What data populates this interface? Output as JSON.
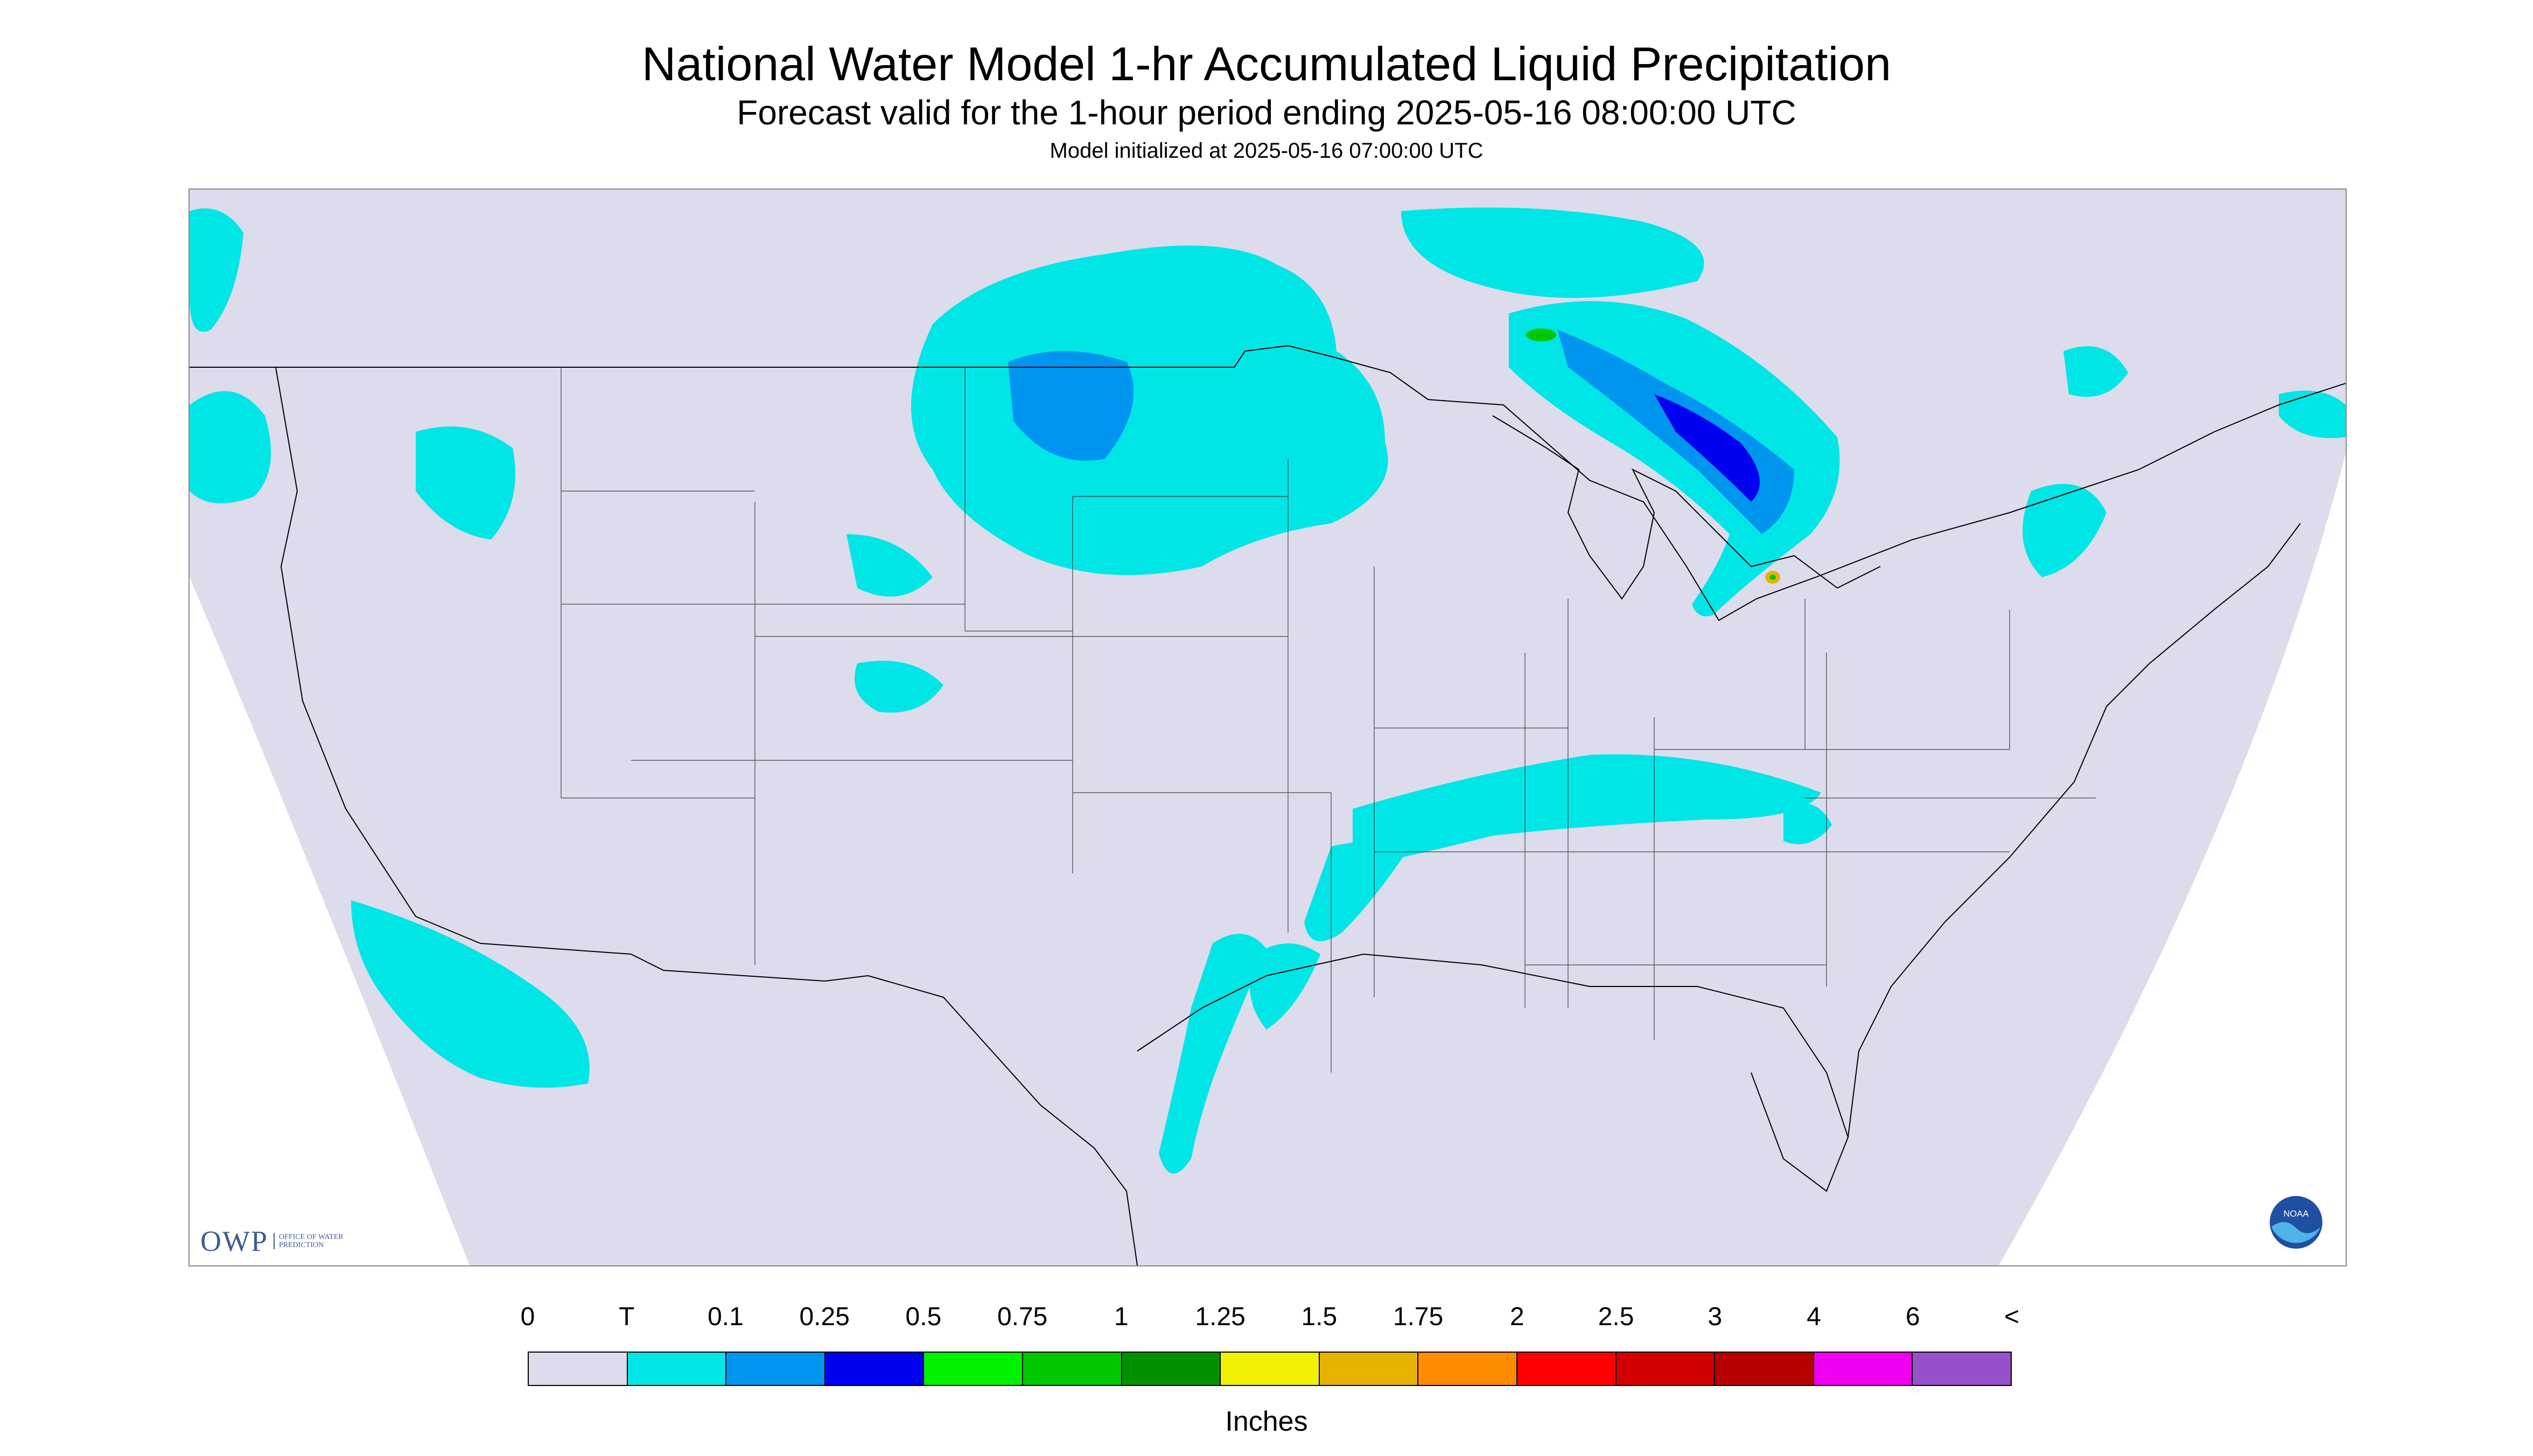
{
  "title": "National Water Model 1-hr Accumulated Liquid Precipitation",
  "subtitle": "Forecast valid for the 1-hour period ending 2025-05-16 08:00:00 UTC",
  "init_note": "Model initialized at 2025-05-16 07:00:00 UTC",
  "owp_logo": {
    "text": "OWP",
    "subtext": "OFFICE OF WATER PREDICTION"
  },
  "noaa_logo": {
    "text": "NOAA",
    "icon": "noaa-logo-icon"
  },
  "legend": {
    "units": "Inches",
    "labels": [
      "0",
      "T",
      "0.1",
      "0.25",
      "0.5",
      "0.75",
      "1",
      "1.25",
      "1.5",
      "1.75",
      "2",
      "2.5",
      "3",
      "4",
      "6",
      "<"
    ],
    "colors": [
      "#dcdcec",
      "#00e6e6",
      "#0096f0",
      "#0000f0",
      "#00f000",
      "#00c800",
      "#009000",
      "#f0f000",
      "#e6b400",
      "#ff8c00",
      "#ff0000",
      "#d20000",
      "#b90000",
      "#f000f0",
      "#9650c8"
    ]
  },
  "map": {
    "background_color": "#dcdcec",
    "outside_color": "#ffffff",
    "boundary_color": "#000000",
    "precip_regions": [
      {
        "name": "northern-plains-canada",
        "level": "T",
        "color": "#00e6e6"
      },
      {
        "name": "northern-plains-core",
        "level": "0.1",
        "color": "#0096f0"
      },
      {
        "name": "great-lakes-band",
        "level": "T",
        "color": "#00e6e6"
      },
      {
        "name": "great-lakes-core",
        "level": "0.25-1.5",
        "color": "#0000f0"
      },
      {
        "name": "ohio-valley-band",
        "level": "T",
        "color": "#00e6e6"
      },
      {
        "name": "gulf-coast-texas",
        "level": "T",
        "color": "#00e6e6"
      },
      {
        "name": "pacific-offshore",
        "level": "T",
        "color": "#00e6e6"
      },
      {
        "name": "pacific-northwest",
        "level": "T",
        "color": "#00e6e6"
      }
    ]
  }
}
